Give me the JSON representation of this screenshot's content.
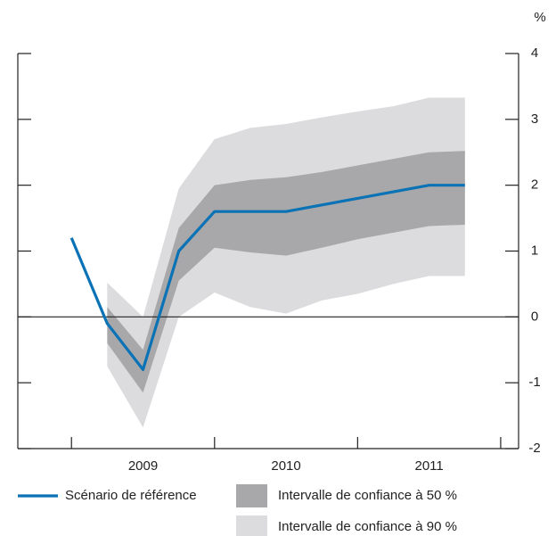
{
  "chart_data": {
    "type": "line",
    "unit": "%",
    "categories": [
      null,
      null,
      "2009",
      null,
      null,
      null,
      "2010",
      null,
      null,
      null,
      "2011",
      null
    ],
    "series": [
      {
        "name": "Scénario de référence",
        "color": "#0a72b5",
        "values": [
          1.2,
          -0.1,
          -0.8,
          1.0,
          1.6,
          1.6,
          1.6,
          1.7,
          1.8,
          1.9,
          2.0,
          2.0
        ]
      }
    ],
    "bands": [
      {
        "name": "Intervalle de confiance à 90 %",
        "color": "#dcdcde",
        "lower": [
          null,
          -0.75,
          -1.68,
          0.0,
          0.37,
          0.15,
          0.05,
          0.25,
          0.35,
          0.5,
          0.62,
          0.62
        ],
        "upper": [
          null,
          0.52,
          0.0,
          1.95,
          2.7,
          2.87,
          2.93,
          3.03,
          3.12,
          3.2,
          3.33,
          3.33
        ]
      },
      {
        "name": "Intervalle de confiance à 50 %",
        "color": "#a8a8ab",
        "lower": [
          null,
          -0.4,
          -1.15,
          0.55,
          1.05,
          0.98,
          0.93,
          1.05,
          1.18,
          1.28,
          1.38,
          1.4
        ],
        "upper": [
          null,
          0.15,
          -0.5,
          1.35,
          2.0,
          2.08,
          2.12,
          2.2,
          2.3,
          2.4,
          2.5,
          2.52
        ]
      }
    ],
    "ylim": [
      -2,
      4
    ],
    "yticks": [
      -2,
      -1,
      0,
      1,
      2,
      3,
      4
    ]
  }
}
